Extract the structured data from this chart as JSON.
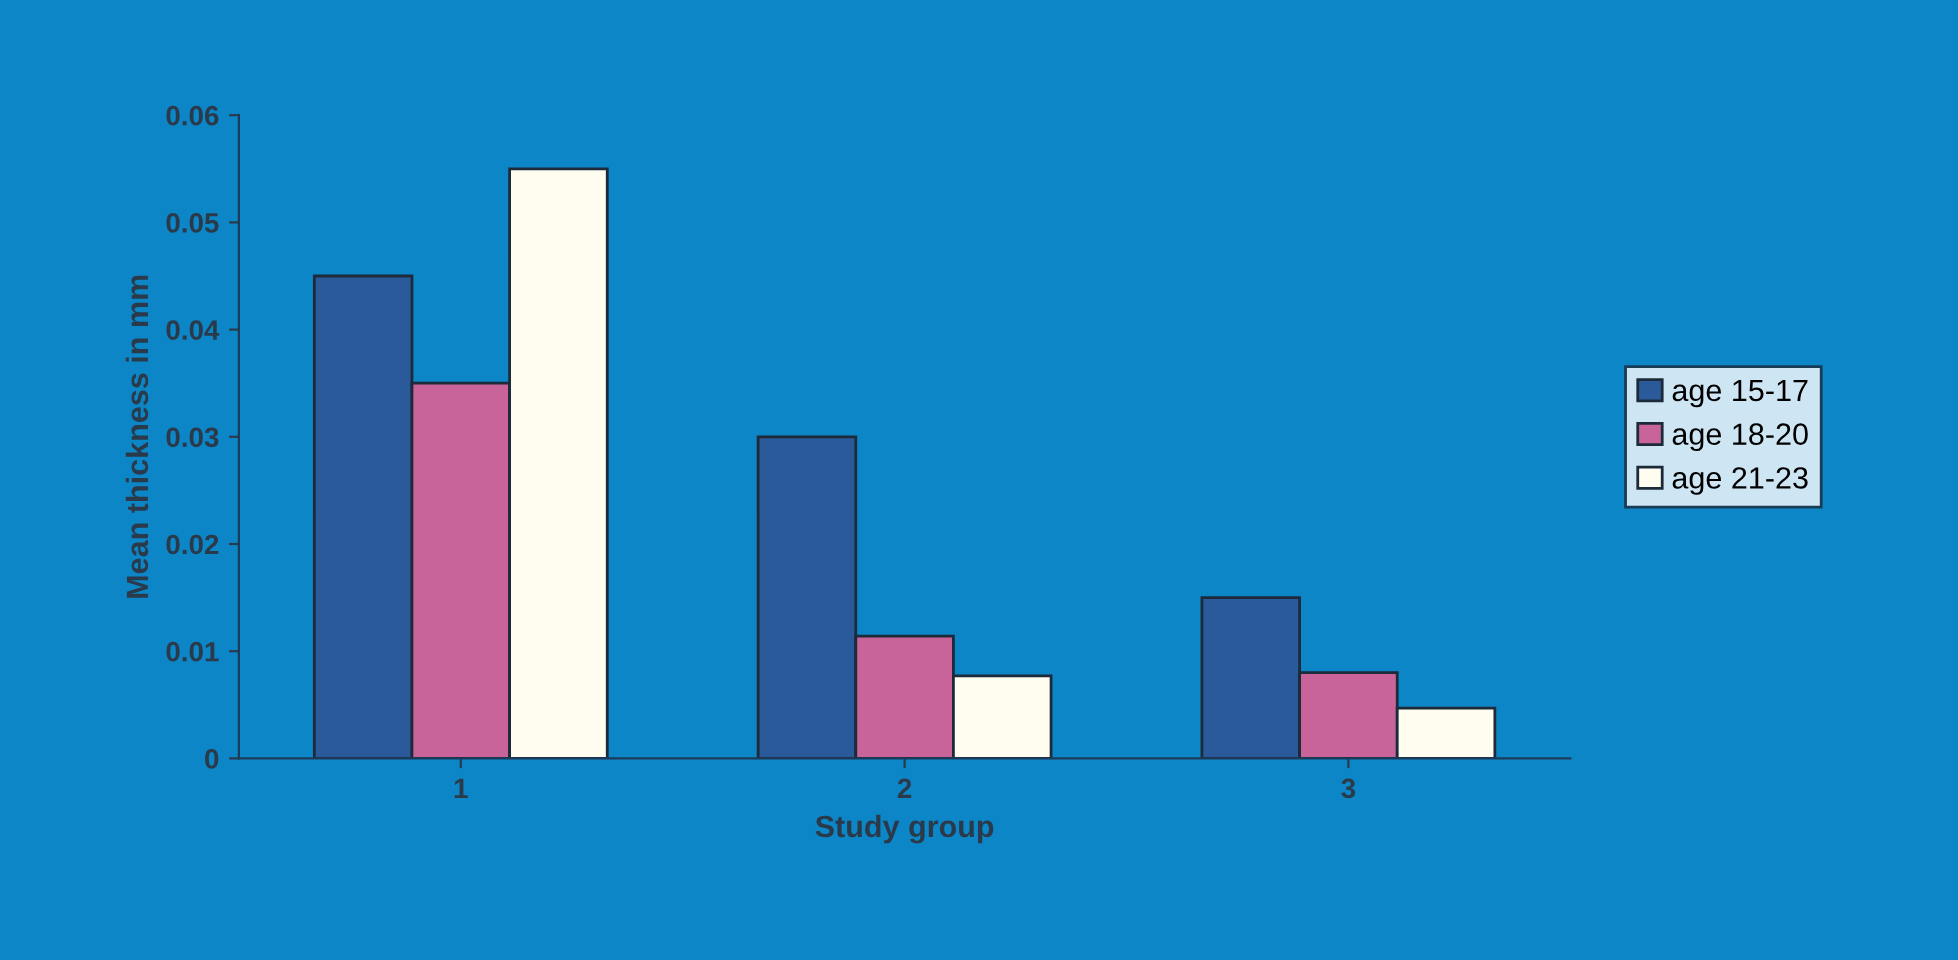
{
  "chart_data": {
    "type": "bar",
    "xlabel": "Study group",
    "ylabel": "Mean thickness in mm",
    "categories": [
      "1",
      "2",
      "3"
    ],
    "series": [
      {
        "name": "age 15-17",
        "color": "#2a5a9a",
        "values": [
          0.045,
          0.03,
          0.015
        ]
      },
      {
        "name": "age 18-20",
        "color": "#c8649a",
        "values": [
          0.035,
          0.0114,
          0.008
        ]
      },
      {
        "name": "age 21-23",
        "color": "#fffdf0",
        "values": [
          0.055,
          0.0077,
          0.0047
        ]
      }
    ],
    "ylim": [
      0,
      0.06
    ],
    "yticks": [
      0,
      0.01,
      0.02,
      0.03,
      0.04,
      0.05,
      0.06
    ],
    "grid": false,
    "legend": "right"
  }
}
